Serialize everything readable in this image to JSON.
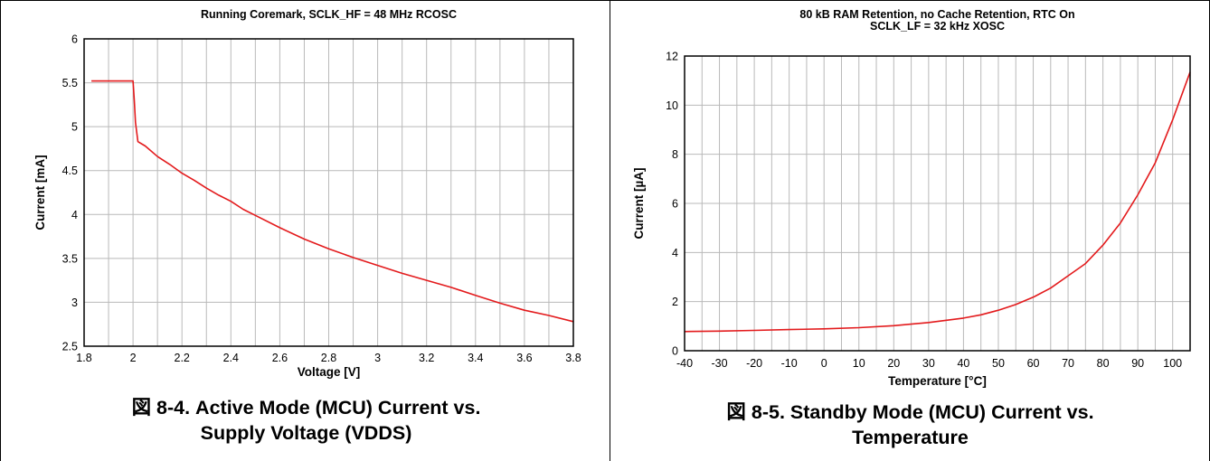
{
  "colors": {
    "series": "#e31a1c",
    "grid": "#b9b9b9",
    "frame": "#000000"
  },
  "charts": [
    {
      "caption_lines": [
        "図 8-4. Active Mode (MCU) Current vs.",
        "Supply Voltage (VDDS)"
      ],
      "chart_data": {
        "type": "line",
        "title_lines": [
          "Running Coremark, SCLK_HF = 48 MHz RCOSC"
        ],
        "xlabel": "Voltage [V]",
        "ylabel": "Current [mA]",
        "xlim": [
          1.8,
          3.8
        ],
        "ylim": [
          2.5,
          6
        ],
        "xticks": [
          1.8,
          2,
          2.2,
          2.4,
          2.6,
          2.8,
          3,
          3.2,
          3.4,
          3.6,
          3.8
        ],
        "yticks": [
          2.5,
          3,
          3.5,
          4,
          4.5,
          5,
          5.5,
          6
        ],
        "xticklabels": [
          "1.8",
          "2",
          "2.2",
          "2.4",
          "2.6",
          "2.8",
          "3",
          "3.2",
          "3.4",
          "3.6",
          "3.8"
        ],
        "yticklabels": [
          "2.5",
          "3",
          "3.5",
          "4",
          "4.5",
          "5",
          "5.5",
          "6"
        ],
        "xgrid": [
          1.8,
          1.9,
          2.0,
          2.1,
          2.2,
          2.3,
          2.4,
          2.5,
          2.6,
          2.7,
          2.8,
          2.9,
          3.0,
          3.1,
          3.2,
          3.3,
          3.4,
          3.5,
          3.6,
          3.7,
          3.8
        ],
        "grid": true,
        "legend": "none",
        "series": [
          {
            "x": [
              1.83,
              2.0,
              2.005,
              2.01,
              2.02,
              2.05,
              2.1,
              2.15,
              2.2,
              2.25,
              2.3,
              2.35,
              2.4,
              2.45,
              2.5,
              2.6,
              2.7,
              2.8,
              2.9,
              3.0,
              3.1,
              3.2,
              3.3,
              3.4,
              3.5,
              3.6,
              3.7,
              3.8
            ],
            "y": [
              5.52,
              5.52,
              5.3,
              5.05,
              4.83,
              4.78,
              4.66,
              4.57,
              4.47,
              4.39,
              4.3,
              4.22,
              4.15,
              4.06,
              3.99,
              3.85,
              3.72,
              3.61,
              3.51,
              3.42,
              3.33,
              3.25,
              3.17,
              3.08,
              2.99,
              2.91,
              2.85,
              2.78
            ]
          }
        ]
      }
    },
    {
      "caption_lines": [
        "図 8-5. Standby Mode (MCU) Current vs.",
        "Temperature"
      ],
      "chart_data": {
        "type": "line",
        "title_lines": [
          "80 kB RAM Retention, no Cache Retention, RTC On",
          "SCLK_LF = 32 kHz XOSC"
        ],
        "xlabel": "Temperature [°C]",
        "ylabel": "Current [µA]",
        "xlim": [
          -40,
          105
        ],
        "ylim": [
          0,
          12
        ],
        "xticks": [
          -40,
          -30,
          -20,
          -10,
          0,
          10,
          20,
          30,
          40,
          50,
          60,
          70,
          80,
          90,
          100
        ],
        "yticks": [
          0,
          2,
          4,
          6,
          8,
          10,
          12
        ],
        "xticklabels": [
          "-40",
          "-30",
          "-20",
          "-10",
          "0",
          "10",
          "20",
          "30",
          "40",
          "50",
          "60",
          "70",
          "80",
          "90",
          "100"
        ],
        "yticklabels": [
          "0",
          "2",
          "4",
          "6",
          "8",
          "10",
          "12"
        ],
        "xgrid": [
          -40,
          -35,
          -30,
          -25,
          -20,
          -15,
          -10,
          -5,
          0,
          5,
          10,
          15,
          20,
          25,
          30,
          35,
          40,
          45,
          50,
          55,
          60,
          65,
          70,
          75,
          80,
          85,
          90,
          95,
          100,
          105
        ],
        "grid": true,
        "legend": "none",
        "series": [
          {
            "x": [
              -40,
              -30,
              -20,
              -10,
              0,
              10,
              20,
              30,
              40,
              45,
              50,
              55,
              60,
              65,
              70,
              75,
              80,
              85,
              90,
              95,
              100,
              105
            ],
            "y": [
              0.78,
              0.8,
              0.83,
              0.86,
              0.89,
              0.94,
              1.02,
              1.15,
              1.33,
              1.46,
              1.65,
              1.88,
              2.18,
              2.55,
              3.05,
              3.55,
              4.3,
              5.2,
              6.35,
              7.65,
              9.4,
              11.35
            ]
          }
        ]
      }
    }
  ]
}
